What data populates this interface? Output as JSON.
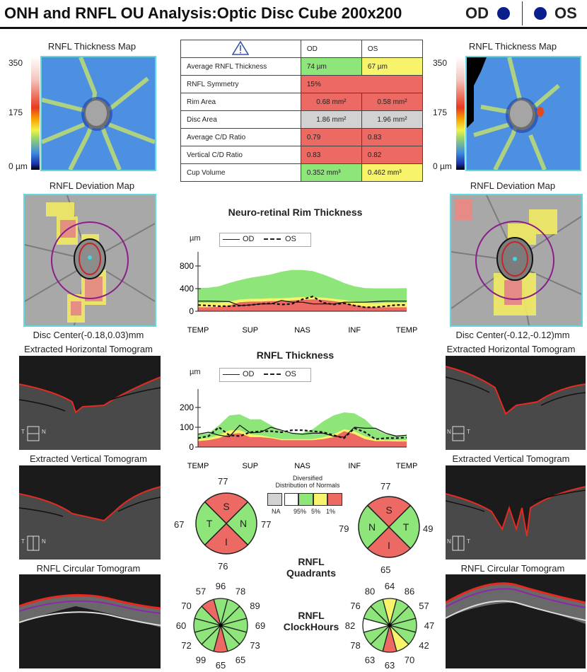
{
  "header": {
    "title": "ONH and RNFL OU Analysis:Optic Disc Cube 200x200",
    "od_label": "OD",
    "os_label": "OS",
    "eye_dot_color": "#0b1f8c"
  },
  "left": {
    "thickness_map_title": "RNFL Thickness Map",
    "scale_ticks": [
      "350",
      "175",
      "0 µm"
    ],
    "deviation_map_title": "RNFL Deviation Map",
    "disc_center": "Disc Center(-0.18,0.03)mm",
    "horizontal_tomogram_title": "Extracted Horizontal Tomogram",
    "horizontal_orient": [
      "T",
      "N"
    ],
    "vertical_tomogram_title": "Extracted Vertical Tomogram",
    "vertical_orient": [
      "T",
      "N"
    ],
    "circular_tomogram_title": "RNFL Circular Tomogram"
  },
  "right": {
    "thickness_map_title": "RNFL Thickness Map",
    "scale_ticks": [
      "350",
      "175",
      "0 µm"
    ],
    "deviation_map_title": "RNFL Deviation Map",
    "disc_center": "Disc Center(-0.12,-0.12)mm",
    "horizontal_tomogram_title": "Extracted Horizontal Tomogram",
    "horizontal_orient": [
      "N",
      "T"
    ],
    "vertical_tomogram_title": "Extracted Vertical Tomogram",
    "vertical_orient": [
      "N",
      "T"
    ],
    "circular_tomogram_title": "RNFL Circular Tomogram"
  },
  "table": {
    "warning_icon": "warning-triangle-icon",
    "col_od": "OD",
    "col_os": "OS",
    "rows": [
      {
        "label": "Average RNFL Thickness",
        "od": "74 µm",
        "os": "67 µm",
        "od_status": "g",
        "os_status": "y"
      },
      {
        "label": "RNFL Symmetry",
        "merged": "15%",
        "status": "r"
      },
      {
        "label": "Rim Area",
        "od": "0.68 mm²",
        "os": "0.58 mm²",
        "od_status": "r",
        "os_status": "r"
      },
      {
        "label": "Disc Area",
        "od": "1.86 mm²",
        "os": "1.96 mm²",
        "od_status": "gr",
        "os_status": "gr"
      },
      {
        "label": "Average C/D Ratio",
        "od": "0.79",
        "os": "0.83",
        "od_status": "r",
        "os_status": "r"
      },
      {
        "label": "Vertical C/D Ratio",
        "od": "0.83",
        "os": "0.82",
        "od_status": "r",
        "os_status": "r"
      },
      {
        "label": "Cup Volume",
        "od": "0.352 mm³",
        "os": "0.462 mm³",
        "od_status": "g",
        "os_status": "y"
      }
    ]
  },
  "legend_od": "OD",
  "legend_os": "OS",
  "unit": "µm",
  "status_colors": {
    "green": "#8ee57a",
    "yellow": "#f7f36a",
    "red": "#ec6a63",
    "white": "#ffffff",
    "gray": "#d2d2d2"
  },
  "chart_data": [
    {
      "type": "line",
      "title": "Neuro-retinal Rim Thickness",
      "ylabel": "µm",
      "ylim": [
        0,
        900
      ],
      "yticks": [
        "0",
        "400",
        "800"
      ],
      "ytick_values": [
        0,
        400,
        800
      ],
      "xticks": [
        "TEMP",
        "SUP",
        "NAS",
        "INF",
        "TEMP"
      ],
      "x": [
        0,
        0.05,
        0.1,
        0.15,
        0.2,
        0.25,
        0.3,
        0.35,
        0.4,
        0.45,
        0.5,
        0.55,
        0.6,
        0.65,
        0.7,
        0.75,
        0.8,
        0.85,
        0.9,
        0.95,
        1
      ],
      "normal_upper": [
        410,
        415,
        440,
        500,
        550,
        590,
        620,
        650,
        700,
        730,
        730,
        710,
        650,
        580,
        500,
        440,
        410,
        405,
        405,
        405,
        410
      ],
      "normal_mid": [
        150,
        150,
        150,
        170,
        210,
        220,
        220,
        230,
        230,
        240,
        250,
        250,
        240,
        220,
        200,
        170,
        150,
        140,
        150,
        150,
        150
      ],
      "normal_low": [
        70,
        70,
        75,
        100,
        160,
        170,
        170,
        180,
        180,
        190,
        200,
        210,
        200,
        180,
        150,
        110,
        80,
        70,
        70,
        70,
        70
      ],
      "series": [
        {
          "name": "OD",
          "style": "solid",
          "values": [
            180,
            180,
            175,
            170,
            100,
            110,
            130,
            130,
            190,
            160,
            160,
            130,
            130,
            130,
            160,
            160,
            160,
            170,
            180,
            180,
            180
          ]
        },
        {
          "name": "OS",
          "style": "dashed",
          "values": [
            110,
            100,
            90,
            90,
            100,
            110,
            130,
            140,
            120,
            130,
            210,
            260,
            150,
            120,
            140,
            100,
            70,
            70,
            90,
            110,
            110
          ]
        }
      ]
    },
    {
      "type": "line",
      "title": "RNFL Thickness",
      "ylabel": "µm",
      "ylim": [
        0,
        250
      ],
      "yticks": [
        "0",
        "100",
        "200"
      ],
      "ytick_values": [
        0,
        100,
        200
      ],
      "xticks": [
        "TEMP",
        "SUP",
        "NAS",
        "INF",
        "TEMP"
      ],
      "x": [
        0,
        0.05,
        0.1,
        0.15,
        0.2,
        0.25,
        0.3,
        0.35,
        0.4,
        0.45,
        0.5,
        0.55,
        0.6,
        0.65,
        0.7,
        0.75,
        0.8,
        0.85,
        0.9,
        0.95,
        1
      ],
      "normal_upper": [
        65,
        70,
        110,
        160,
        165,
        140,
        140,
        110,
        80,
        70,
        70,
        90,
        130,
        160,
        175,
        170,
        140,
        90,
        65,
        60,
        60
      ],
      "normal_mid": [
        40,
        45,
        60,
        85,
        85,
        65,
        60,
        50,
        40,
        40,
        40,
        40,
        50,
        65,
        90,
        80,
        55,
        40,
        35,
        35,
        35
      ],
      "normal_low": [
        30,
        35,
        45,
        65,
        70,
        50,
        50,
        45,
        35,
        35,
        35,
        35,
        40,
        50,
        80,
        65,
        40,
        30,
        30,
        28,
        28
      ],
      "series": [
        {
          "name": "OD",
          "style": "solid",
          "values": [
            65,
            75,
            60,
            52,
            110,
            72,
            75,
            100,
            85,
            70,
            65,
            70,
            70,
            55,
            50,
            100,
            95,
            95,
            70,
            55,
            60
          ]
        },
        {
          "name": "OS",
          "style": "dashed",
          "values": [
            45,
            55,
            100,
            60,
            55,
            75,
            80,
            80,
            75,
            85,
            85,
            80,
            75,
            60,
            45,
            95,
            75,
            40,
            45,
            45,
            48
          ]
        }
      ]
    },
    {
      "type": "pie",
      "title": "RNFL Quadrants",
      "legend_title": [
        "Diversified",
        "Distribution of Normals"
      ],
      "legend_labels": [
        "NA",
        "95%",
        "5%",
        "1%"
      ],
      "od": {
        "S": 77,
        "N": 77,
        "I": 76,
        "T": 67,
        "status": {
          "S": "r",
          "N": "g",
          "I": "r",
          "T": "g"
        }
      },
      "os": {
        "S": 77,
        "N": 79,
        "I": 65,
        "T": 49,
        "status": {
          "S": "r",
          "N": "g",
          "I": "r",
          "T": "g"
        }
      }
    },
    {
      "type": "pie",
      "title": "RNFL ClockHours",
      "od": {
        "values": [
          96,
          78,
          89,
          69,
          73,
          65,
          65,
          99,
          72,
          60,
          70,
          57
        ],
        "status": [
          "g",
          "g",
          "g",
          "g",
          "g",
          "g",
          "r",
          "g",
          "g",
          "g",
          "g",
          "r"
        ]
      },
      "os": {
        "values": [
          64,
          86,
          57,
          47,
          42,
          70,
          63,
          63,
          78,
          82,
          76,
          80
        ],
        "status": [
          "y",
          "g",
          "g",
          "g",
          "g",
          "y",
          "r",
          "g",
          "g",
          "w",
          "g",
          "g"
        ]
      }
    }
  ],
  "quadrant_labels": {
    "S": "S",
    "N": "N",
    "I": "I",
    "T": "T"
  },
  "quadrant_title": [
    "RNFL",
    "Quadrants"
  ],
  "clock_title": [
    "RNFL",
    "ClockHours"
  ]
}
